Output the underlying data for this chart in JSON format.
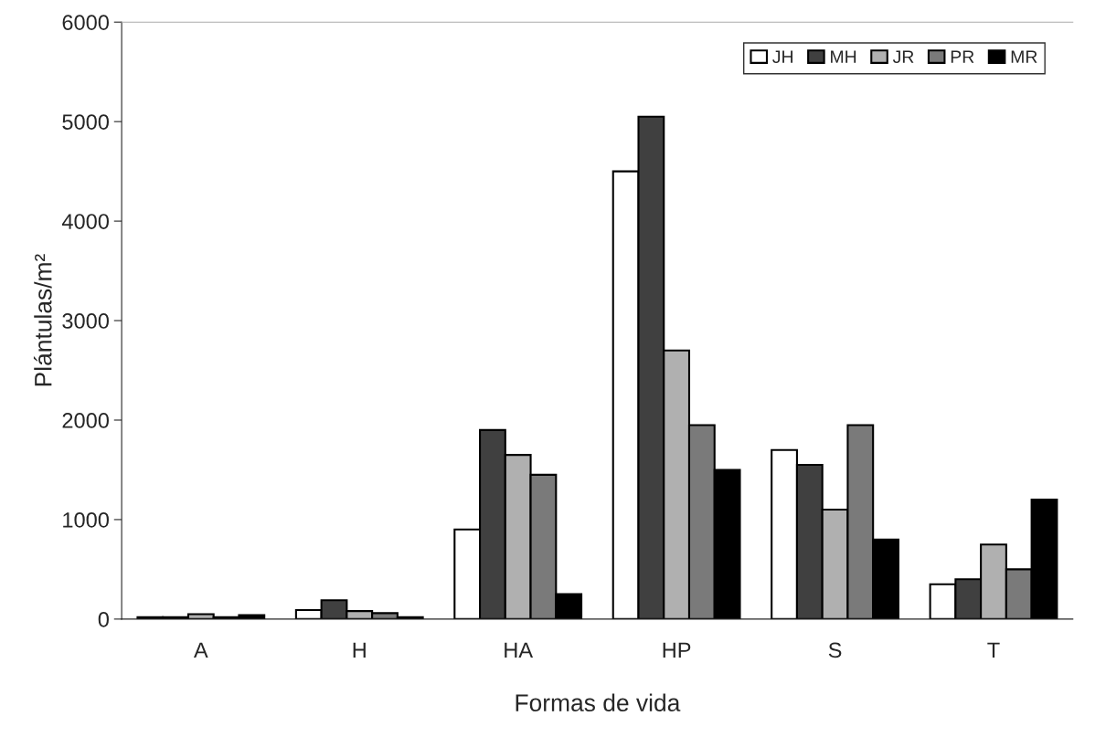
{
  "chart_data": {
    "type": "bar",
    "xlabel": "Formas de vida",
    "ylabel": "Plántulas/m²",
    "categories": [
      "A",
      "H",
      "HA",
      "HP",
      "S",
      "T"
    ],
    "series": [
      {
        "name": "JH",
        "color": "#ffffff",
        "values": [
          20,
          90,
          900,
          4500,
          1700,
          350
        ]
      },
      {
        "name": "MH",
        "color": "#404040",
        "values": [
          20,
          190,
          1900,
          5050,
          1550,
          400
        ]
      },
      {
        "name": "JR",
        "color": "#b0b0b0",
        "values": [
          50,
          80,
          1650,
          2700,
          1100,
          750
        ]
      },
      {
        "name": "PR",
        "color": "#7a7a7a",
        "values": [
          20,
          60,
          1450,
          1950,
          1950,
          500
        ]
      },
      {
        "name": "MR",
        "color": "#000000",
        "values": [
          40,
          20,
          250,
          1500,
          800,
          1200
        ]
      }
    ],
    "ylim": [
      0,
      6000
    ],
    "yticks": [
      0,
      1000,
      2000,
      3000,
      4000,
      5000,
      6000
    ],
    "grid": false,
    "legend": "top right"
  }
}
